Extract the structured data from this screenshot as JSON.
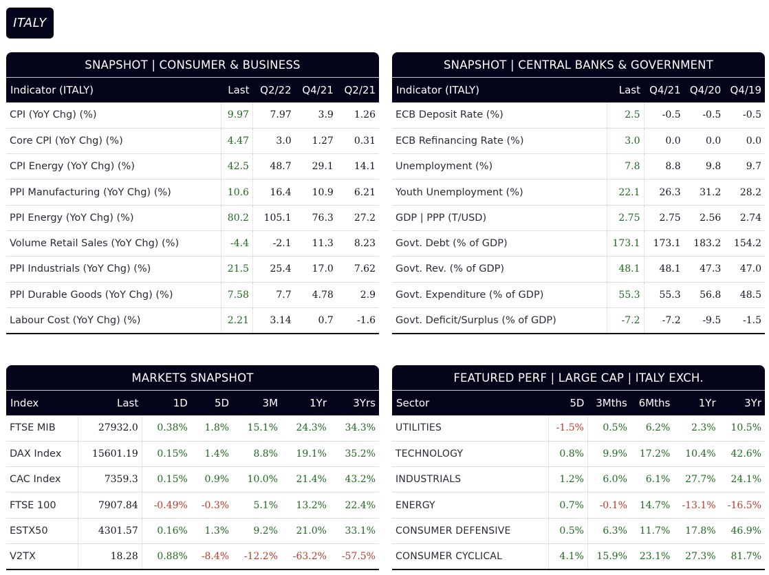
{
  "country": "ITALY",
  "consumer_business": {
    "title": "SNAPSHOT | CONSUMER & BUSINESS",
    "headers": [
      "Indicator (ITALY)",
      "Last",
      "Q2/22",
      "Q4/21",
      "Q2/21"
    ],
    "rows": [
      {
        "label": "CPI (YoY Chg) (%)",
        "values": [
          "9.97",
          "7.97",
          "3.9",
          "1.26"
        ]
      },
      {
        "label": "Core CPI (YoY Chg) (%)",
        "values": [
          "4.47",
          "3.0",
          "1.27",
          "0.31"
        ]
      },
      {
        "label": "CPI Energy (YoY Chg) (%)",
        "values": [
          "42.5",
          "48.7",
          "29.1",
          "14.1"
        ]
      },
      {
        "label": "PPI Manufacturing (YoY Chg) (%)",
        "values": [
          "10.6",
          "16.4",
          "10.9",
          "6.21"
        ]
      },
      {
        "label": "PPI Energy (YoY Chg) (%)",
        "values": [
          "80.2",
          "105.1",
          "76.3",
          "27.2"
        ]
      },
      {
        "label": "Volume Retail Sales (YoY Chg) (%)",
        "values": [
          "-4.4",
          "-2.1",
          "11.3",
          "8.23"
        ]
      },
      {
        "label": "PPI Industrials (YoY Chg) (%)",
        "values": [
          "21.5",
          "25.4",
          "17.0",
          "7.62"
        ]
      },
      {
        "label": "PPI Durable Goods (YoY Chg) (%)",
        "values": [
          "7.58",
          "7.7",
          "4.78",
          "2.9"
        ]
      },
      {
        "label": "Labour Cost (YoY Chg) (%)",
        "values": [
          "2.21",
          "3.14",
          "0.7",
          "-1.6"
        ]
      }
    ]
  },
  "central_banks": {
    "title": "SNAPSHOT | CENTRAL BANKS & GOVERNMENT",
    "headers": [
      "Indicator (ITALY)",
      "Last",
      "Q4/21",
      "Q4/20",
      "Q4/19"
    ],
    "rows": [
      {
        "label": "ECB Deposit Rate (%)",
        "values": [
          "2.5",
          "-0.5",
          "-0.5",
          "-0.5"
        ]
      },
      {
        "label": "ECB Refinancing Rate (%)",
        "values": [
          "3.0",
          "0.0",
          "0.0",
          "0.0"
        ]
      },
      {
        "label": "Unemployment (%)",
        "values": [
          "7.8",
          "8.8",
          "9.8",
          "9.7"
        ]
      },
      {
        "label": "Youth Unemployment (%)",
        "values": [
          "22.1",
          "26.3",
          "31.2",
          "28.2"
        ]
      },
      {
        "label": "GDP | PPP (T/USD)",
        "values": [
          "2.75",
          "2.75",
          "2.56",
          "2.74"
        ]
      },
      {
        "label": "Govt. Debt (% of GDP)",
        "values": [
          "173.1",
          "173.1",
          "183.2",
          "154.2"
        ]
      },
      {
        "label": "Govt. Rev. (% of GDP)",
        "values": [
          "48.1",
          "48.1",
          "47.3",
          "47.0"
        ]
      },
      {
        "label": "Govt. Expenditure (% of GDP)",
        "values": [
          "55.3",
          "55.3",
          "56.8",
          "48.5"
        ]
      },
      {
        "label": "Govt. Deficit/Surplus (% of GDP)",
        "values": [
          "-7.2",
          "-7.2",
          "-9.5",
          "-1.5"
        ]
      }
    ]
  },
  "markets": {
    "title": "MARKETS SNAPSHOT",
    "headers": [
      "Index",
      "Last",
      "1D",
      "5D",
      "3M",
      "1Yr",
      "3Yrs"
    ],
    "rows": [
      {
        "label": "FTSE MIB",
        "values": [
          "27932.0",
          "0.38%",
          "1.8%",
          "15.1%",
          "24.3%",
          "34.3%"
        ]
      },
      {
        "label": "DAX Index",
        "values": [
          "15601.19",
          "0.15%",
          "1.4%",
          "8.8%",
          "19.1%",
          "35.2%"
        ]
      },
      {
        "label": "CAC Index",
        "values": [
          "7359.3",
          "0.15%",
          "0.9%",
          "10.0%",
          "21.4%",
          "43.2%"
        ]
      },
      {
        "label": "FTSE 100",
        "values": [
          "7907.84",
          "-0.49%",
          "-0.3%",
          "5.1%",
          "13.2%",
          "22.4%"
        ]
      },
      {
        "label": "ESTX50",
        "values": [
          "4301.57",
          "0.16%",
          "1.3%",
          "9.2%",
          "21.0%",
          "33.1%"
        ]
      },
      {
        "label": "V2TX",
        "values": [
          "18.28",
          "0.88%",
          "-8.4%",
          "-12.2%",
          "-63.2%",
          "-57.5%"
        ]
      }
    ]
  },
  "featured": {
    "title": "FEATURED PERF | LARGE CAP | ITALY EXCH.",
    "headers": [
      "Sector",
      "5D",
      "3Mths",
      "6Mths",
      "1Yr",
      "3Yr"
    ],
    "rows": [
      {
        "label": "UTILITIES",
        "values": [
          "-1.5%",
          "0.5%",
          "6.2%",
          "2.3%",
          "10.5%"
        ]
      },
      {
        "label": "TECHNOLOGY",
        "values": [
          "0.8%",
          "9.9%",
          "17.2%",
          "10.4%",
          "42.6%"
        ]
      },
      {
        "label": "INDUSTRIALS",
        "values": [
          "1.2%",
          "6.0%",
          "6.1%",
          "27.7%",
          "24.1%"
        ]
      },
      {
        "label": "ENERGY",
        "values": [
          "0.7%",
          "-0.1%",
          "14.7%",
          "-13.1%",
          "-16.5%"
        ]
      },
      {
        "label": "CONSUMER DEFENSIVE",
        "values": [
          "0.5%",
          "6.3%",
          "11.7%",
          "17.8%",
          "46.9%"
        ]
      },
      {
        "label": "CONSUMER CYCLICAL",
        "values": [
          "4.1%",
          "15.9%",
          "23.1%",
          "27.3%",
          "81.7%"
        ]
      }
    ]
  },
  "colors": {
    "positive": "#1d6b1d",
    "negative": "#c0392b",
    "header_bg": "#03031a"
  }
}
